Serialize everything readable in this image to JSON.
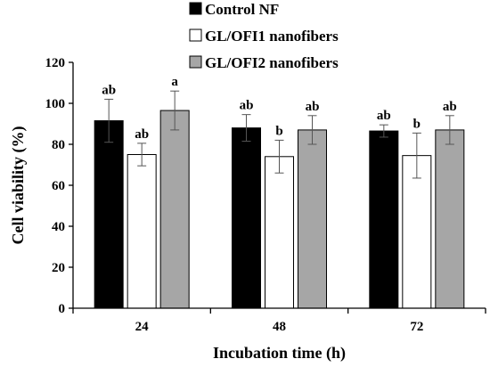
{
  "chart_data": {
    "type": "bar",
    "title": "",
    "xlabel": "Incubation time (h)",
    "ylabel": "Cell viability (%)",
    "ylim": [
      0,
      120
    ],
    "yticks": [
      0,
      20,
      40,
      60,
      80,
      100,
      120
    ],
    "categories": [
      "24",
      "48",
      "72"
    ],
    "legend_position": "top-right",
    "grid": false,
    "series": [
      {
        "name": "Control NF",
        "color": "#000000",
        "values": [
          91.5,
          88,
          86.5
        ],
        "errors": [
          10.5,
          6.5,
          3
        ],
        "labels": [
          "ab",
          "ab",
          "ab"
        ]
      },
      {
        "name": "GL/OFI1 nanofibers",
        "color": "#ffffff",
        "values": [
          75,
          74,
          74.5
        ],
        "errors": [
          5.5,
          8,
          11
        ],
        "labels": [
          "ab",
          "b",
          "b"
        ]
      },
      {
        "name": "GL/OFI2 nanofibers",
        "color": "#a6a6a6",
        "values": [
          96.5,
          87,
          87
        ],
        "errors": [
          9.5,
          7,
          7
        ],
        "labels": [
          "a",
          "ab",
          "ab"
        ]
      }
    ]
  }
}
